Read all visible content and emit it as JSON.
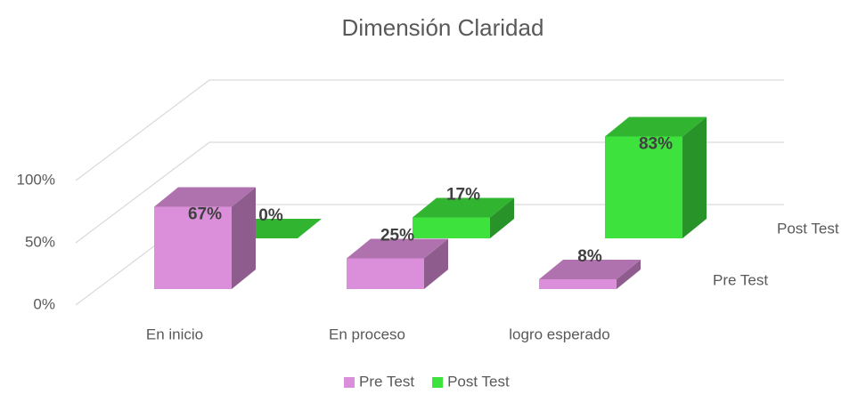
{
  "chart_data": {
    "type": "bar3d",
    "title": "Dimensión Claridad",
    "categories": [
      "En inicio",
      "En proceso",
      "logro esperado"
    ],
    "series": [
      {
        "name": "Pre Test",
        "color": "#db8fdb",
        "values": [
          67,
          25,
          8
        ],
        "value_labels": [
          "67%",
          "25%",
          "8%"
        ]
      },
      {
        "name": "Post Test",
        "color": "#3de23d",
        "values": [
          0,
          17,
          83
        ],
        "value_labels": [
          "0%",
          "17%",
          "83%"
        ]
      }
    ],
    "ylim": [
      0,
      100
    ],
    "yticks": [
      {
        "value": 0,
        "label": "0%"
      },
      {
        "value": 50,
        "label": "50%"
      },
      {
        "value": 100,
        "label": "100%"
      }
    ],
    "grid": true,
    "legend": "bottom"
  }
}
